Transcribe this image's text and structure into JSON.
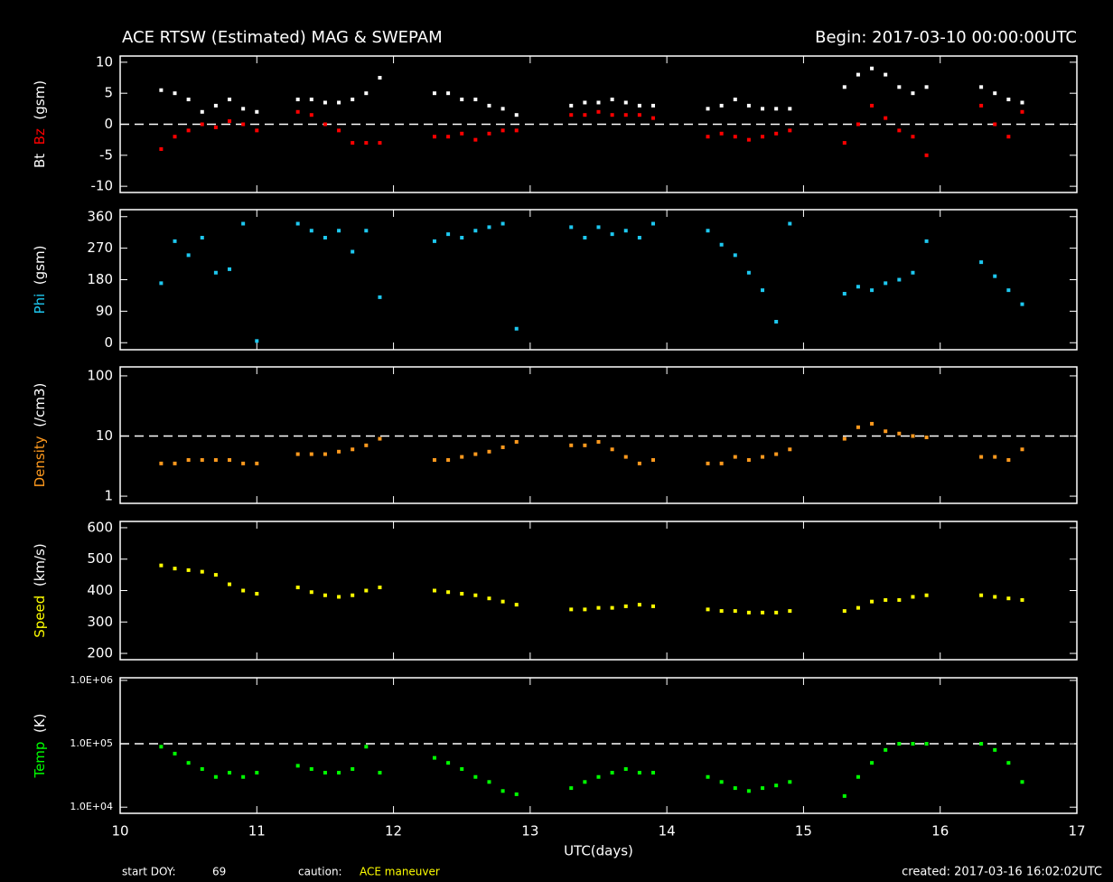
{
  "header": {
    "title": "ACE RTSW (Estimated) MAG & SWEPAM",
    "begin": "Begin: 2017-03-10 00:00:00UTC"
  },
  "footer": {
    "start_label": "start DOY:",
    "start_doy": 69,
    "caution_label": "caution:",
    "caution": "ACE maneuver",
    "created": "created: 2017-03-16 16:02:02UTC"
  },
  "chart_data": [
    {
      "type": "scatter",
      "ylabel_unit": "(gsm)",
      "xlim": [
        10,
        17
      ],
      "ylim": [
        -11,
        11
      ],
      "yticks": [
        10,
        5,
        0,
        -5,
        -10
      ],
      "refline": 0,
      "x": [
        10.3,
        10.4,
        10.5,
        10.6,
        10.7,
        10.8,
        10.9,
        11.0,
        11.3,
        11.4,
        11.5,
        11.6,
        11.7,
        11.8,
        11.9,
        12.3,
        12.4,
        12.5,
        12.6,
        12.7,
        12.8,
        12.9,
        13.3,
        13.4,
        13.5,
        13.6,
        13.7,
        13.8,
        13.9,
        14.3,
        14.4,
        14.5,
        14.6,
        14.7,
        14.8,
        14.9,
        15.3,
        15.4,
        15.5,
        15.6,
        15.7,
        15.8,
        15.9,
        16.3,
        16.4,
        16.5,
        16.6
      ],
      "series": [
        {
          "name": "Bt",
          "color": "#ffffff",
          "values": [
            5.5,
            5,
            4,
            2,
            3,
            4,
            2.5,
            2,
            4,
            4,
            3.5,
            3.5,
            4,
            5,
            7.5,
            5,
            5,
            4,
            4,
            3,
            2.5,
            1.5,
            3,
            3.5,
            3.5,
            4,
            3.5,
            3,
            3,
            2.5,
            3,
            4,
            3,
            2.5,
            2.5,
            2.5,
            6,
            8,
            9,
            8,
            6,
            5,
            6,
            6,
            5,
            4,
            3.5
          ]
        },
        {
          "name": "Bz",
          "color": "#ff0000",
          "values": [
            -4,
            -2,
            -1,
            0,
            -0.5,
            0.5,
            0,
            -1,
            2,
            1.5,
            0,
            -1,
            -3,
            -3,
            -3,
            -2,
            -2,
            -1.5,
            -2.5,
            -1.5,
            -1,
            -1,
            1.5,
            1.5,
            2,
            1.5,
            1.5,
            1.5,
            1,
            -2,
            -1.5,
            -2,
            -2.5,
            -2,
            -1.5,
            -1,
            -3,
            0,
            3,
            1,
            -1,
            -2,
            -5,
            3,
            0,
            -2,
            2
          ]
        }
      ]
    },
    {
      "type": "scatter",
      "ylabel_unit": "(gsm)",
      "xlim": [
        10,
        17
      ],
      "ylim": [
        -20,
        380
      ],
      "yticks": [
        360,
        270,
        180,
        90,
        0
      ],
      "x": [
        10.3,
        10.4,
        10.5,
        10.6,
        10.7,
        10.8,
        10.9,
        11.0,
        11.3,
        11.4,
        11.5,
        11.6,
        11.7,
        11.8,
        11.9,
        12.3,
        12.4,
        12.5,
        12.6,
        12.7,
        12.8,
        12.9,
        13.3,
        13.4,
        13.5,
        13.6,
        13.7,
        13.8,
        13.9,
        14.3,
        14.4,
        14.5,
        14.6,
        14.7,
        14.8,
        14.9,
        15.3,
        15.4,
        15.5,
        15.6,
        15.7,
        15.8,
        15.9,
        16.3,
        16.4,
        16.5,
        16.6
      ],
      "series": [
        {
          "name": "Phi",
          "color": "#1ec8f0",
          "values": [
            170,
            290,
            250,
            300,
            200,
            210,
            340,
            5,
            340,
            320,
            300,
            320,
            260,
            320,
            130,
            290,
            310,
            300,
            320,
            330,
            340,
            40,
            330,
            300,
            330,
            310,
            320,
            300,
            340,
            320,
            280,
            250,
            200,
            150,
            60,
            340,
            140,
            160,
            150,
            170,
            180,
            200,
            290,
            230,
            190,
            150,
            110
          ]
        }
      ]
    },
    {
      "type": "scatter",
      "ylabel_unit": "(/cm3)",
      "log": true,
      "xlim": [
        10,
        17
      ],
      "ylim": [
        0.76,
        141
      ],
      "yticks": [
        100,
        10,
        1
      ],
      "refline": 10,
      "x": [
        10.3,
        10.4,
        10.5,
        10.6,
        10.7,
        10.8,
        10.9,
        11.0,
        11.3,
        11.4,
        11.5,
        11.6,
        11.7,
        11.8,
        11.9,
        12.3,
        12.4,
        12.5,
        12.6,
        12.7,
        12.8,
        12.9,
        13.3,
        13.4,
        13.5,
        13.6,
        13.7,
        13.8,
        13.9,
        14.3,
        14.4,
        14.5,
        14.6,
        14.7,
        14.8,
        14.9,
        15.3,
        15.4,
        15.5,
        15.6,
        15.7,
        15.8,
        15.9,
        16.3,
        16.4,
        16.5,
        16.6
      ],
      "series": [
        {
          "name": "Density",
          "color": "#ff9a1e",
          "values": [
            3.5,
            3.5,
            4,
            4,
            4,
            4,
            3.5,
            3.5,
            5,
            5,
            5,
            5.5,
            6,
            7,
            9,
            4,
            4,
            4.5,
            5,
            5.5,
            6.5,
            8,
            7,
            7,
            8,
            6,
            4.5,
            3.5,
            4,
            3.5,
            3.5,
            4.5,
            4,
            4.5,
            5,
            6,
            9,
            14,
            16,
            12,
            11,
            10,
            9.5,
            4.5,
            4.5,
            4,
            6
          ]
        }
      ]
    },
    {
      "type": "scatter",
      "ylabel_unit": "(km/s)",
      "xlim": [
        10,
        17
      ],
      "ylim": [
        180,
        620
      ],
      "yticks": [
        600,
        500,
        400,
        300,
        200
      ],
      "x": [
        10.3,
        10.4,
        10.5,
        10.6,
        10.7,
        10.8,
        10.9,
        11.0,
        11.3,
        11.4,
        11.5,
        11.6,
        11.7,
        11.8,
        11.9,
        12.3,
        12.4,
        12.5,
        12.6,
        12.7,
        12.8,
        12.9,
        13.3,
        13.4,
        13.5,
        13.6,
        13.7,
        13.8,
        13.9,
        14.3,
        14.4,
        14.5,
        14.6,
        14.7,
        14.8,
        14.9,
        15.3,
        15.4,
        15.5,
        15.6,
        15.7,
        15.8,
        15.9,
        16.3,
        16.4,
        16.5,
        16.6
      ],
      "series": [
        {
          "name": "Speed",
          "color": "#ffff00",
          "values": [
            480,
            470,
            465,
            460,
            450,
            420,
            400,
            390,
            410,
            395,
            385,
            380,
            385,
            400,
            410,
            400,
            395,
            390,
            385,
            375,
            365,
            355,
            340,
            340,
            345,
            345,
            350,
            355,
            350,
            340,
            335,
            335,
            330,
            330,
            330,
            335,
            335,
            345,
            365,
            370,
            370,
            380,
            385,
            385,
            380,
            375,
            370
          ]
        }
      ]
    },
    {
      "type": "scatter",
      "ylabel_unit": "(K)",
      "log": true,
      "xlim": [
        10,
        17
      ],
      "ylim": [
        8000,
        1100000
      ],
      "refline": 100000,
      "yticks": [
        {
          "value": 1000000,
          "label": "1.0E+06"
        },
        {
          "value": 100000,
          "label": "1.0E+05"
        },
        {
          "value": 10000,
          "label": "1.0E+04"
        }
      ],
      "xticks": [
        10,
        11,
        12,
        13,
        14,
        15,
        16,
        17
      ],
      "xlabel": "UTC(days)",
      "x": [
        10.3,
        10.4,
        10.5,
        10.6,
        10.7,
        10.8,
        10.9,
        11.0,
        11.3,
        11.4,
        11.5,
        11.6,
        11.7,
        11.8,
        11.9,
        12.3,
        12.4,
        12.5,
        12.6,
        12.7,
        12.8,
        12.9,
        13.3,
        13.4,
        13.5,
        13.6,
        13.7,
        13.8,
        13.9,
        14.3,
        14.4,
        14.5,
        14.6,
        14.7,
        14.8,
        14.9,
        15.3,
        15.4,
        15.5,
        15.6,
        15.7,
        15.8,
        15.9,
        16.3,
        16.4,
        16.5,
        16.6
      ],
      "series": [
        {
          "name": "Temp",
          "color": "#00ff00",
          "values": [
            90000,
            70000,
            50000,
            40000,
            30000,
            35000,
            30000,
            35000,
            45000,
            40000,
            35000,
            35000,
            40000,
            90000,
            35000,
            60000,
            50000,
            40000,
            30000,
            25000,
            18000,
            16000,
            20000,
            25000,
            30000,
            35000,
            40000,
            35000,
            35000,
            30000,
            25000,
            20000,
            18000,
            20000,
            22000,
            25000,
            15000,
            30000,
            50000,
            80000,
            100000,
            100000,
            100000,
            100000,
            80000,
            50000,
            25000
          ]
        }
      ]
    }
  ]
}
